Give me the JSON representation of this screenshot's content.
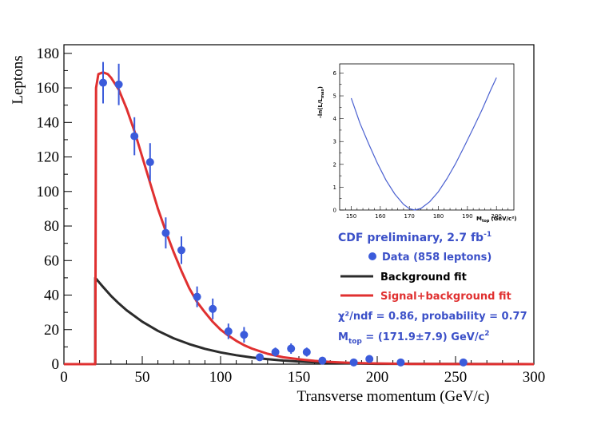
{
  "chart_data": [
    {
      "type": "scatter",
      "xlabel": "Transverse  momentum  (GeV/c)",
      "ylabel": "Leptons",
      "xlim": [
        0,
        300
      ],
      "ylim": [
        0,
        185
      ],
      "x_ticks": [
        0,
        50,
        100,
        150,
        200,
        250,
        300
      ],
      "y_ticks": [
        0,
        20,
        40,
        60,
        80,
        100,
        120,
        140,
        160,
        180
      ],
      "grid": false,
      "series": [
        {
          "name": "Data  (858 leptons)",
          "kind": "points",
          "color": "#3b5bdb",
          "points": [
            {
              "x": 25,
              "y": 163,
              "err": 12
            },
            {
              "x": 35,
              "y": 162,
              "err": 12
            },
            {
              "x": 45,
              "y": 132,
              "err": 11
            },
            {
              "x": 55,
              "y": 117,
              "err": 11
            },
            {
              "x": 65,
              "y": 76,
              "err": 9
            },
            {
              "x": 75,
              "y": 66,
              "err": 8
            },
            {
              "x": 85,
              "y": 39,
              "err": 6
            },
            {
              "x": 95,
              "y": 32,
              "err": 6
            },
            {
              "x": 105,
              "y": 19,
              "err": 4.5
            },
            {
              "x": 115,
              "y": 17,
              "err": 4.5
            },
            {
              "x": 125,
              "y": 4,
              "err": 2
            },
            {
              "x": 135,
              "y": 7,
              "err": 2.6
            },
            {
              "x": 145,
              "y": 9,
              "err": 3
            },
            {
              "x": 155,
              "y": 7,
              "err": 2.6
            },
            {
              "x": 165,
              "y": 2,
              "err": 1.4
            },
            {
              "x": 185,
              "y": 1,
              "err": 1
            },
            {
              "x": 195,
              "y": 3,
              "err": 1.7
            },
            {
              "x": 215,
              "y": 1,
              "err": 1
            },
            {
              "x": 255,
              "y": 1,
              "err": 1
            }
          ]
        },
        {
          "name": "Background  fit",
          "kind": "line",
          "color": "#2b2b2b",
          "x": [
            0,
            20,
            20,
            25,
            30,
            35,
            40,
            50,
            60,
            70,
            80,
            90,
            100,
            110,
            120,
            130,
            140,
            150,
            160,
            170,
            180,
            190,
            200,
            300
          ],
          "y": [
            0,
            0,
            50,
            44.7,
            39.6,
            35.2,
            31.2,
            24.6,
            19.3,
            15.0,
            11.6,
            8.9,
            6.8,
            5.2,
            3.9,
            2.9,
            2.1,
            1.5,
            1.1,
            0.8,
            0.5,
            0.35,
            0.2,
            0
          ]
        },
        {
          "name": "Signal+background  fit",
          "kind": "line",
          "color": "#e03030",
          "x": [
            0,
            20,
            20.5,
            22,
            25,
            28,
            30,
            35,
            40,
            45,
            50,
            55,
            60,
            65,
            70,
            75,
            80,
            85,
            90,
            95,
            100,
            105,
            110,
            115,
            120,
            130,
            140,
            150,
            160,
            170,
            180,
            190,
            200,
            220,
            300
          ],
          "y": [
            0,
            0,
            160,
            168,
            169,
            168,
            166,
            159,
            148,
            135,
            120,
            105,
            90,
            77,
            65,
            54,
            44,
            36,
            30,
            24.5,
            20,
            16.5,
            13.5,
            11,
            9,
            6,
            4,
            2.8,
            1.9,
            1.3,
            0.9,
            0.6,
            0.4,
            0.15,
            0
          ]
        }
      ],
      "legend": {
        "placement": "right",
        "title": "CDF  preliminary,  2.7 fb",
        "title_sup": "-1",
        "items": [
          "Data  (858 leptons)",
          "Background  fit",
          "Signal+background  fit"
        ],
        "stat_line": "χ²/ndf = 0.86,  probability =  0.77",
        "mtop_prefix": "M",
        "mtop_sub": "top",
        "mtop_value": " = (171.9±7.9) GeV/c",
        "mtop_sup": "2"
      }
    },
    {
      "type": "line",
      "xlabel": "M",
      "xlabel_sub": "top",
      "xlabel_unit": "(GeV/c²)",
      "ylabel": "-ln(L/L",
      "ylabel_sub": "max",
      "ylabel_close": ")",
      "xlim": [
        146,
        206
      ],
      "ylim": [
        0,
        6.4
      ],
      "x_ticks": [
        150,
        160,
        170,
        180,
        190,
        200
      ],
      "y_ticks": [
        0,
        1,
        2,
        3,
        4,
        5,
        6
      ],
      "series": [
        {
          "name": "",
          "color": "#4a60d0",
          "x": [
            150,
            153,
            156,
            159,
            162,
            165,
            168,
            170,
            171.9,
            174,
            177,
            180,
            183,
            186,
            189,
            192,
            195,
            198,
            200
          ],
          "y": [
            4.9,
            3.8,
            2.9,
            2.05,
            1.3,
            0.7,
            0.25,
            0.06,
            0,
            0.07,
            0.36,
            0.8,
            1.38,
            2.05,
            2.8,
            3.58,
            4.38,
            5.25,
            5.8
          ]
        }
      ]
    }
  ]
}
